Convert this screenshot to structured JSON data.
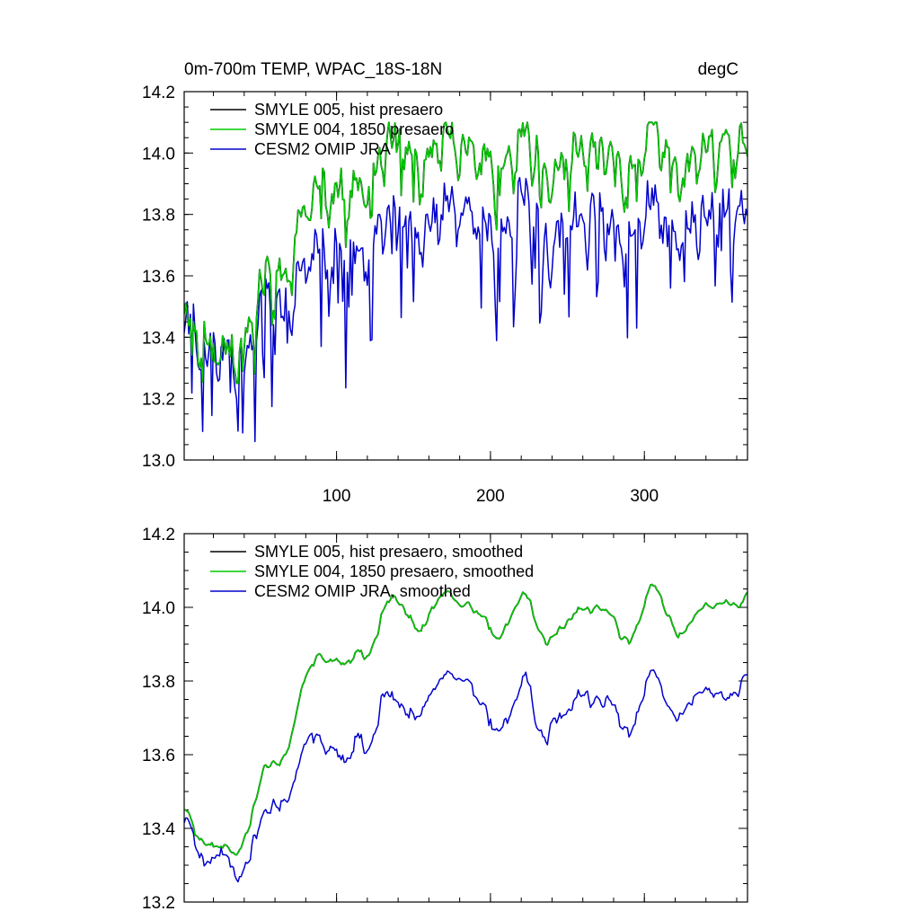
{
  "chart_data": [
    {
      "type": "line",
      "title": "0m-700m TEMP, WPAC_18S-18N",
      "units": "degC",
      "xlim": [
        1,
        367
      ],
      "ylim": [
        13.0,
        14.2
      ],
      "xticks": [
        100,
        200,
        300
      ],
      "xtick_labels": [
        "100",
        "200",
        "300"
      ],
      "yticks": [
        13.0,
        13.2,
        13.4,
        13.6,
        13.8,
        14.0,
        14.2
      ],
      "ytick_labels": [
        "13.0",
        "13.2",
        "13.4",
        "13.6",
        "13.8",
        "14.0",
        "14.2"
      ],
      "legend_position": "top-left",
      "series": [
        {
          "name": "SMYLE 005, hist presaero",
          "color": "#000000",
          "values": []
        },
        {
          "name": "SMYLE 004, 1850 presaero",
          "color": "#00cc00",
          "values": []
        },
        {
          "name": "CESM2 OMIP JRA",
          "color": "#0000cc",
          "values": []
        }
      ]
    },
    {
      "type": "line",
      "xlim": [
        1,
        367
      ],
      "ylim": [
        13.2,
        14.2
      ],
      "xticks": [
        100,
        200,
        300
      ],
      "yticks": [
        13.2,
        13.4,
        13.6,
        13.8,
        14.0,
        14.2
      ],
      "ytick_labels": [
        "13.2",
        "13.4",
        "13.6",
        "13.8",
        "14.0",
        "14.2"
      ],
      "legend_position": "top-left",
      "series": [
        {
          "name": "SMYLE 005, hist presaero, smoothed",
          "color": "#000000",
          "values": []
        },
        {
          "name": "SMYLE 004, 1850 presaero, smoothed",
          "color": "#00cc00",
          "values": []
        },
        {
          "name": "CESM2 OMIP JRA, smoothed",
          "color": "#0000cc",
          "values": []
        }
      ]
    }
  ]
}
